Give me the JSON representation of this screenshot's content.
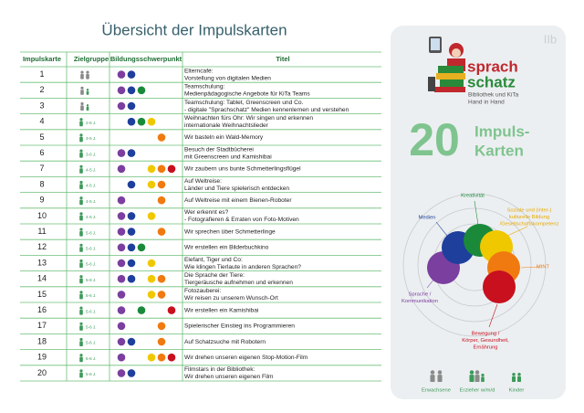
{
  "header": {
    "title": "Übersicht der Impulskarten"
  },
  "table": {
    "columns": [
      "Impulskarte",
      "Zielgruppe",
      "Bildungsschwerpunkt",
      "Titel"
    ],
    "rows": [
      {
        "number": 1,
        "title": [
          "Elterncafé:",
          "Vorstellung von digitalen Medien"
        ]
      },
      {
        "number": 2,
        "title": [
          "Teamschulung:",
          "Medienpädagogische Angebote für KiTa Teams"
        ]
      },
      {
        "number": 3,
        "title": [
          "Teamschulung: Tablet, Greenscreen und Co.",
          "- digitale \"Sprachschatz\" Medien kennenlernen und verstehen"
        ]
      },
      {
        "number": 4,
        "age": "2-6 J.",
        "title": [
          "Weihnachten fürs Ohr: Wir singen und erkennen",
          "internationale Weihnachtslieder"
        ]
      },
      {
        "number": 5,
        "age": "3-5 J.",
        "title": [
          "Wir basteln ein Wald-Memory"
        ]
      },
      {
        "number": 6,
        "age": "3-6 J.",
        "title": [
          "Besuch der Stadtbücherei",
          "mit Greenscreen und Kamishibai"
        ]
      },
      {
        "number": 7,
        "age": "4-5 J.",
        "title": [
          "Wir zaubern uns bunte Schmetterlingsflügel"
        ]
      },
      {
        "number": 8,
        "age": "4-5 J.",
        "title": [
          "Auf Weltreise:",
          "Länder und Tiere spielerisch entdecken"
        ]
      },
      {
        "number": 9,
        "age": "4-5 J.",
        "title": [
          "Auf Weltreise mit einem Bienen-Roboter"
        ]
      },
      {
        "number": 10,
        "age": "4-6 J.",
        "title": [
          "Wer erkennt es?",
          "- Fotografieren & Erraten von Foto-Motiven"
        ]
      },
      {
        "number": 11,
        "age": "5-6 J.",
        "title": [
          "Wir sprechen über Schmetterlinge"
        ]
      },
      {
        "number": 12,
        "age": "5-6 J.",
        "title": [
          "Wir erstellen ein Bilderbuchkino"
        ]
      },
      {
        "number": 13,
        "age": "5-6 J.",
        "title": [
          "Elefant, Tiger und Co:",
          "Wie klingen Tierlaute in anderen Sprachen?"
        ]
      },
      {
        "number": 14,
        "age": "5-6 J.",
        "title": [
          "Die Sprache der Tiere:",
          "Tiergeräusche aufnehmen und erkennen"
        ]
      },
      {
        "number": 15,
        "age": "5-6 J.",
        "title": [
          "Fotozauberei:",
          "Wir reisen zu unserem Wunsch-Ort"
        ]
      },
      {
        "number": 16,
        "age": "5-6 J.",
        "title": [
          "Wir erstellen ein Kamishibai"
        ]
      },
      {
        "number": 17,
        "age": "5-6 J.",
        "title": [
          "Spielerischer Einstieg ins Programmieren"
        ]
      },
      {
        "number": 18,
        "age": "5-6 J.",
        "title": [
          "Auf Schatzsuche mit Robotern"
        ]
      },
      {
        "number": 19,
        "age": "5-6 J.",
        "title": [
          "Wir drehen unseren eigenen Stop-Motion-Film"
        ]
      },
      {
        "number": 20,
        "age": "5-6 J.",
        "title": [
          "Filmstars in der Bibliothek:",
          "Wir drehen unseren eigenen Film"
        ]
      }
    ]
  },
  "side_panel": {
    "badge": "IIb",
    "logo": {
      "word1": "sprach",
      "word2": "schatz",
      "tagline": [
        "Bibliothek und KiTa",
        "Hand in Hand"
      ]
    },
    "count": 20,
    "count_label": [
      "Impuls-",
      "Karten"
    ],
    "areas": {
      "kreativitaet": [
        "Kreativität"
      ],
      "soziale": [
        "Soziale und (inter-)",
        "kulturelle Bildung",
        "/Gesellschaftskompetenz"
      ],
      "medien": [
        "Medien"
      ],
      "mint": [
        "MINT"
      ],
      "sprache": [
        "Sprache /",
        "Kommunikation"
      ],
      "bewegung": [
        "Bewegung /",
        "Körper, Gesundheit,",
        "Ernährung"
      ]
    },
    "legend": [
      "Erwachsene",
      "Erzieher w/m/d",
      "Kinder"
    ]
  }
}
